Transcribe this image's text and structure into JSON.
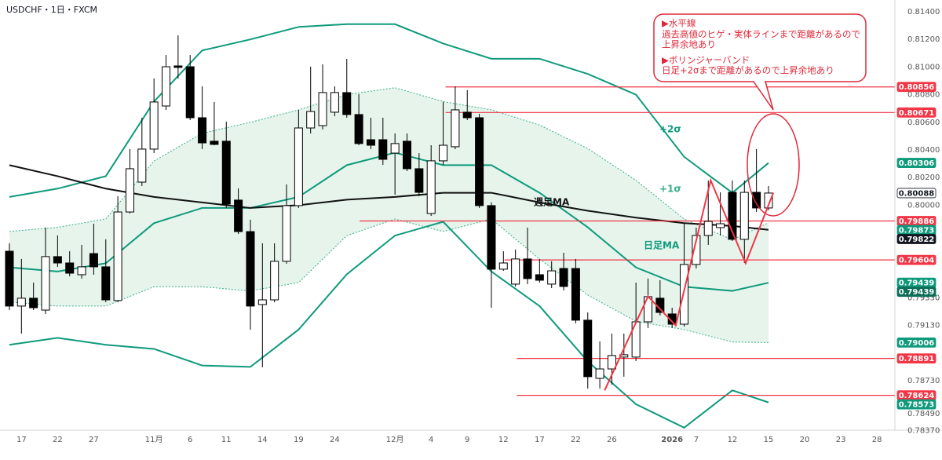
{
  "chart_data": {
    "type": "candlestick",
    "title": "USDCHF・1日・FXCM",
    "xlim": [
      -0.78,
      73.49
    ],
    "ylim": [
      0.78372,
      0.81485
    ],
    "xticks": [
      {
        "value": 1,
        "label": "17"
      },
      {
        "value": 4,
        "label": "22"
      },
      {
        "value": 7,
        "label": "27"
      },
      {
        "value": 12,
        "label": "11月"
      },
      {
        "value": 15,
        "label": "6"
      },
      {
        "value": 18,
        "label": "11"
      },
      {
        "value": 21,
        "label": "14"
      },
      {
        "value": 24,
        "label": "19"
      },
      {
        "value": 27,
        "label": "24"
      },
      {
        "value": 32,
        "label": "12月"
      },
      {
        "value": 35,
        "label": "4"
      },
      {
        "value": 38,
        "label": "9"
      },
      {
        "value": 41,
        "label": "12"
      },
      {
        "value": 44,
        "label": "17"
      },
      {
        "value": 47,
        "label": "22"
      },
      {
        "value": 50,
        "label": "26"
      },
      {
        "value": 55,
        "label": "2026"
      },
      {
        "value": 57,
        "label": "7"
      },
      {
        "value": 60,
        "label": "12"
      },
      {
        "value": 63,
        "label": "15"
      },
      {
        "value": 66,
        "label": "20"
      },
      {
        "value": 69,
        "label": "23"
      },
      {
        "value": 72,
        "label": "28"
      }
    ],
    "yticks": [
      {
        "value": 0.814,
        "label": "0.81400"
      },
      {
        "value": 0.812,
        "label": "0.81200"
      },
      {
        "value": 0.81,
        "label": "0.81000"
      },
      {
        "value": 0.808,
        "label": "0.80800"
      },
      {
        "value": 0.806,
        "label": "0.80600"
      },
      {
        "value": 0.804,
        "label": "0.80400"
      },
      {
        "value": 0.802,
        "label": "0.80200"
      },
      {
        "value": 0.8,
        "label": "0.80000"
      },
      {
        "value": 0.7933,
        "label": "0.79330"
      },
      {
        "value": 0.7913,
        "label": "0.79130"
      },
      {
        "value": 0.7873,
        "label": "0.78730"
      },
      {
        "value": 0.7849,
        "label": "0.78490"
      },
      {
        "value": 0.7837,
        "label": "0.78370"
      }
    ],
    "up_color": "#ffffff",
    "down_color": "#000000",
    "x": [
      0,
      1,
      2,
      3,
      4,
      5,
      6,
      7,
      8,
      9,
      10,
      11,
      12,
      13,
      14,
      15,
      16,
      17,
      18,
      19,
      20,
      21,
      22,
      23,
      24,
      25,
      26,
      27,
      28,
      29,
      30,
      31,
      32,
      33,
      34,
      35,
      36,
      37,
      38,
      39,
      40,
      41,
      42,
      43,
      44,
      45,
      46,
      47,
      48,
      49,
      50,
      51,
      52,
      53,
      54,
      55,
      56,
      57,
      58,
      59,
      60,
      61,
      62,
      63
    ],
    "open": [
      0.79667,
      0.7927,
      0.79327,
      0.79241,
      0.79628,
      0.79582,
      0.79497,
      0.7965,
      0.79554,
      0.7931,
      0.79951,
      0.80167,
      0.80406,
      0.80718,
      0.81008,
      0.81002,
      0.80633,
      0.80463,
      0.80463,
      0.80037,
      0.79809,
      0.79281,
      0.79315,
      0.79594,
      0.79997,
      0.80559,
      0.80576,
      0.80673,
      0.80815,
      0.80656,
      0.80474,
      0.80474,
      0.80377,
      0.80463,
      0.80264,
      0.7994,
      0.80321,
      0.80423,
      0.80673,
      0.80633,
      0.79997,
      0.79537,
      0.79429,
      0.79611,
      0.79497,
      0.79429,
      0.79542,
      0.79542,
      0.79168,
      0.78747,
      0.78815,
      0.78901,
      0.78901,
      0.79156,
      0.79327,
      0.79213,
      0.79139,
      0.79571,
      0.79781,
      0.79838,
      0.80093,
      0.79753,
      0.80093,
      0.7998
    ],
    "high": [
      0.79724,
      0.79611,
      0.7944,
      0.79838,
      0.79781,
      0.79667,
      0.79713,
      0.79866,
      0.79753,
      0.80065,
      0.80406,
      0.80633,
      0.80917,
      0.81087,
      0.81229,
      0.81087,
      0.8086,
      0.80747,
      0.80605,
      0.80122,
      0.79895,
      0.79724,
      0.79724,
      0.8015,
      0.8069,
      0.81002,
      0.81019,
      0.8086,
      0.81059,
      0.80803,
      0.80633,
      0.80633,
      0.80519,
      0.80519,
      0.80377,
      0.80434,
      0.80747,
      0.8086,
      0.80832,
      0.80661,
      0.8002,
      0.79667,
      0.79679,
      0.79838,
      0.79611,
      0.79594,
      0.79656,
      0.79611,
      0.79224,
      0.79014,
      0.79071,
      0.79071,
      0.7944,
      0.79469,
      0.79457,
      0.79258,
      0.79866,
      0.79838,
      0.80179,
      0.80093,
      0.80179,
      0.80179,
      0.80406,
      0.80139
    ],
    "low": [
      0.79241,
      0.79071,
      0.79241,
      0.79213,
      0.79554,
      0.79486,
      0.79469,
      0.79497,
      0.79298,
      0.79298,
      0.7994,
      0.80139,
      0.80377,
      0.8069,
      0.80917,
      0.80616,
      0.80406,
      0.80434,
      0.7998,
      0.79792,
      0.79099,
      0.78827,
      0.79298,
      0.79577,
      0.7998,
      0.80519,
      0.80548,
      0.80644,
      0.80633,
      0.80434,
      0.80406,
      0.80292,
      0.80076,
      0.80247,
      0.80065,
      0.79923,
      0.80292,
      0.80406,
      0.80616,
      0.7998,
      0.79258,
      0.79525,
      0.79412,
      0.79429,
      0.7944,
      0.794,
      0.79383,
      0.79145,
      0.78673,
      0.78673,
      0.78702,
      0.78759,
      0.78872,
      0.79111,
      0.79202,
      0.79111,
      0.79122,
      0.79542,
      0.79713,
      0.79781,
      0.79741,
      0.79582,
      0.79951,
      0.79963
    ],
    "close": [
      0.7927,
      0.79327,
      0.79258,
      0.79628,
      0.79582,
      0.79508,
      0.79554,
      0.79554,
      0.79315,
      0.79951,
      0.80264,
      0.80406,
      0.80747,
      0.81002,
      0.80997,
      0.80633,
      0.80451,
      0.8044,
      0.80008,
      0.79809,
      0.7927,
      0.79315,
      0.79594,
      0.79997,
      0.80559,
      0.80678,
      0.80815,
      0.80815,
      0.80656,
      0.80446,
      0.80434,
      0.80332,
      0.80446,
      0.80264,
      0.80093,
      0.80321,
      0.80434,
      0.8069,
      0.80633,
      0.79997,
      0.79537,
      0.79582,
      0.79611,
      0.79469,
      0.79457,
      0.79525,
      0.79412,
      0.79168,
      0.78759,
      0.78815,
      0.78912,
      0.78918,
      0.79156,
      0.79338,
      0.79224,
      0.79139,
      0.79571,
      0.79781,
      0.79883,
      0.79866,
      0.79753,
      0.80093,
      0.7998,
      0.80088
    ],
    "bands": {
      "fill": "#e6f4ec",
      "x": [
        0,
        4,
        8,
        12,
        16,
        20,
        24,
        28,
        32,
        36,
        40,
        44,
        48,
        52,
        56,
        60,
        63
      ],
      "series": [
        {
          "name": "+2σ",
          "color": "#0f9a7c",
          "dashed": false,
          "values": [
            0.8006,
            0.8012,
            0.8021,
            0.8075,
            0.8112,
            0.812,
            0.8129,
            0.8131,
            0.8131,
            0.8117,
            0.8106,
            0.8106,
            0.8095,
            0.808,
            0.8035,
            0.8009,
            0.80306
          ]
        },
        {
          "name": "+1σ",
          "color": "#3aae8c",
          "dashed": true,
          "values": [
            0.7981,
            0.7984,
            0.799,
            0.8032,
            0.8052,
            0.806,
            0.8069,
            0.808,
            0.8085,
            0.8075,
            0.8069,
            0.8058,
            0.8041,
            0.8018,
            0.799,
            0.7975,
            0.79873
          ]
        },
        {
          "name": "日足MA",
          "color": "#0f9a7c",
          "dashed": false,
          "values": [
            0.7955,
            0.7952,
            0.7958,
            0.7987,
            0.7998,
            0.7998,
            0.8006,
            0.8029,
            0.8038,
            0.8029,
            0.8029,
            0.8009,
            0.7984,
            0.7955,
            0.7941,
            0.7938,
            0.79439
          ]
        },
        {
          "name": "週足MA",
          "color": "#111111",
          "dashed": false,
          "values": [
            0.8029,
            0.8021,
            0.8012,
            0.8006,
            0.8002,
            0.7998,
            0.8,
            0.8004,
            0.8006,
            0.8009,
            0.8009,
            0.8002,
            0.7996,
            0.7991,
            0.7987,
            0.7985,
            0.79822
          ]
        },
        {
          "color": "#0f9a7c",
          "dashed": false,
          "values": [
            0.7899,
            0.7904,
            0.7899,
            0.7896,
            0.7884,
            0.7883,
            0.791,
            0.795,
            0.7978,
            0.7988,
            0.7952,
            0.7927,
            0.7887,
            0.7856,
            0.7839,
            0.7866,
            0.78573
          ]
        },
        {
          "color": "#3aae8c",
          "dashed": true,
          "values": [
            0.793,
            0.7927,
            0.7927,
            0.7941,
            0.7941,
            0.7938,
            0.7944,
            0.7978,
            0.799,
            0.7981,
            0.799,
            0.7961,
            0.7935,
            0.7916,
            0.791,
            0.7901,
            0.79006
          ]
        }
      ]
    },
    "drawing": {
      "color": "#f23645",
      "x": [
        49.4,
        53,
        55.3,
        58.2,
        61.1,
        63.4
      ],
      "values": [
        0.7866,
        0.7934,
        0.7913,
        0.8018,
        0.7958,
        0.8009
      ]
    },
    "price_tags": [
      {
        "value": 0.80856,
        "color": "#f23645",
        "line_from": 36.2
      },
      {
        "value": 0.80671,
        "color": "#f23645",
        "line_from": 36.2
      },
      {
        "value": 0.80306,
        "color": "#0f9a7c"
      },
      {
        "value": 0.80088,
        "color": "#ffffff",
        "text_color": "#131722"
      },
      {
        "value": 0.79886,
        "color": "#f23645",
        "line_from": 29.06
      },
      {
        "value": 0.79873,
        "color": "#0f9a7c"
      },
      {
        "value": 0.79822,
        "color": "#131722"
      },
      {
        "value": 0.79604,
        "color": "#f23645",
        "line_from": 41.1
      },
      {
        "value": 0.79439,
        "color": "#0f9a7c"
      },
      {
        "value": 0.79439,
        "color": "#0b6e59"
      },
      {
        "value": 0.79006,
        "color": "#0f9a7c"
      },
      {
        "value": 0.78891,
        "color": "#f23645",
        "line_from": 42.1
      },
      {
        "value": 0.78624,
        "color": "#f23645",
        "line_from": 42.1
      },
      {
        "value": 0.78573,
        "color": "#0f9a7c"
      }
    ],
    "annotation": {
      "lines": [
        "▶水平線",
        "過去高値のヒゲ・実体ラインまで距離があるので",
        "上昇余地あり",
        "▶ボリンジャーバンド",
        "日足+2σまで距離があるので上昇余地あり"
      ]
    }
  }
}
